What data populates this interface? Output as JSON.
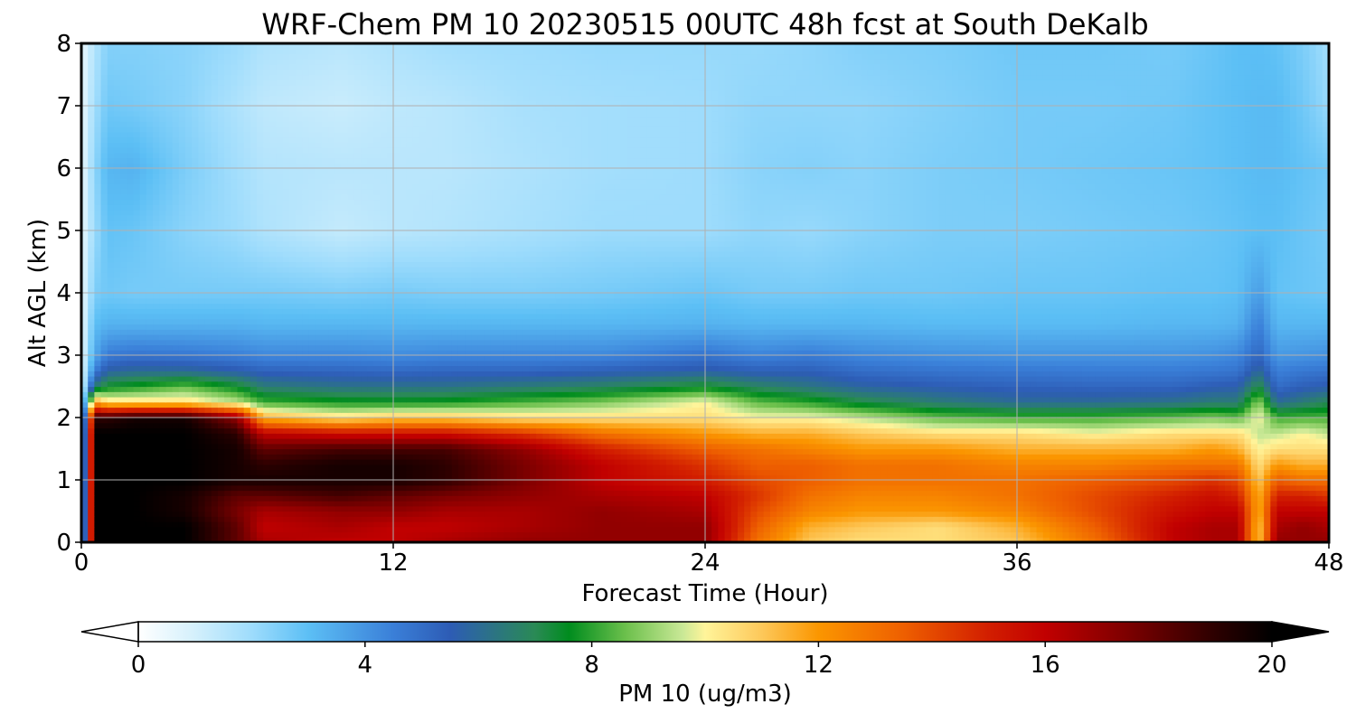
{
  "chart_data": {
    "type": "heatmap",
    "title": "WRF-Chem PM 10  20230515 00UTC 48h fcst at South DeKalb",
    "xlabel": "Forecast Time (Hour)",
    "ylabel": "Alt AGL (km)",
    "xlim": [
      0,
      48
    ],
    "ylim": [
      0,
      8
    ],
    "x_ticks": [
      "0",
      "12",
      "24",
      "36",
      "48"
    ],
    "y_ticks": [
      "0",
      "1",
      "2",
      "3",
      "4",
      "5",
      "6",
      "7",
      "8"
    ],
    "grid": true,
    "colorbar": {
      "label": "PM 10  (ug/m3)",
      "range": [
        0,
        20
      ],
      "ticks": [
        "0",
        "4",
        "8",
        "12",
        "16",
        "20"
      ],
      "extend": "both",
      "orientation": "horizontal",
      "stops": [
        {
          "v": 0,
          "c": "#ffffff"
        },
        {
          "v": 1,
          "c": "#d4f0fc"
        },
        {
          "v": 2,
          "c": "#9edcfc"
        },
        {
          "v": 3,
          "c": "#5cbff5"
        },
        {
          "v": 4.5,
          "c": "#3a7fd8"
        },
        {
          "v": 5.5,
          "c": "#2d5cb5"
        },
        {
          "v": 7,
          "c": "#2a8a55"
        },
        {
          "v": 7.6,
          "c": "#008c1e"
        },
        {
          "v": 8.6,
          "c": "#6cc04c"
        },
        {
          "v": 9.6,
          "c": "#c9e896"
        },
        {
          "v": 10,
          "c": "#fff49a"
        },
        {
          "v": 11,
          "c": "#fdc85a"
        },
        {
          "v": 12,
          "c": "#fb9600"
        },
        {
          "v": 13.5,
          "c": "#ee5f00"
        },
        {
          "v": 15,
          "c": "#d21e00"
        },
        {
          "v": 16,
          "c": "#c10000"
        },
        {
          "v": 17.5,
          "c": "#7a0000"
        },
        {
          "v": 19,
          "c": "#2c0000"
        },
        {
          "v": 20,
          "c": "#000000"
        }
      ]
    },
    "z_unit": "ug/m3",
    "x": [
      0,
      0.5,
      1,
      2,
      4,
      6,
      7,
      10,
      12,
      14,
      17,
      20,
      24,
      26,
      28,
      30,
      33,
      36,
      39,
      42,
      43.5,
      44.5,
      45.3,
      46,
      47,
      48
    ],
    "y": [
      0,
      0.25,
      0.5,
      0.75,
      1,
      1.25,
      1.5,
      1.75,
      2,
      2.25,
      2.5,
      2.75,
      3,
      3.5,
      4,
      5,
      6,
      7,
      8
    ],
    "z": [
      [
        0.5,
        20,
        20,
        20,
        20,
        18,
        16.5,
        16,
        16,
        16.5,
        17,
        17,
        17,
        13,
        11,
        10.5,
        10.5,
        11,
        13,
        16,
        16.5,
        16.5,
        11,
        17,
        17,
        17
      ],
      [
        0.5,
        20,
        20,
        20,
        20,
        18,
        16,
        16.5,
        16,
        16,
        16.5,
        17,
        17,
        13.5,
        11.5,
        11,
        10.5,
        11.5,
        13.5,
        16,
        16.5,
        16.5,
        11,
        16.5,
        17,
        16.5
      ],
      [
        0.5,
        20,
        20,
        20,
        19.5,
        17.5,
        16.5,
        17,
        17,
        16.5,
        16.5,
        17,
        16.5,
        14,
        12.5,
        12,
        12,
        12.5,
        14,
        15.5,
        16,
        16,
        11.5,
        16,
        16,
        16
      ],
      [
        0.5,
        20,
        20,
        20,
        19.5,
        18,
        18,
        18.5,
        18,
        17.5,
        17,
        16.5,
        16,
        14.5,
        13,
        12.5,
        12.5,
        13,
        14,
        15,
        15.5,
        15,
        11.5,
        15,
        15,
        14.5
      ],
      [
        0.5,
        20,
        20,
        20,
        20,
        19.5,
        19.5,
        19.5,
        19.5,
        19,
        17.5,
        16,
        15,
        14,
        13.5,
        13,
        13,
        13,
        13.5,
        14,
        14.5,
        14,
        11,
        13.5,
        13,
        13
      ],
      [
        0.5,
        20,
        20,
        20,
        20,
        19.5,
        19,
        19.5,
        19.5,
        19,
        17.5,
        16,
        14.5,
        13.5,
        13.5,
        13,
        13,
        12.5,
        12.5,
        13,
        13,
        13,
        10.5,
        12,
        11.5,
        11.5
      ],
      [
        0.5,
        20,
        20,
        20,
        20,
        19.5,
        18,
        18.5,
        18.5,
        18.5,
        17,
        15,
        13.5,
        13,
        12.5,
        12,
        12,
        11.5,
        11.5,
        11.5,
        12,
        11.5,
        10,
        10.5,
        10.5,
        10.5
      ],
      [
        0.5,
        20,
        20,
        20,
        20,
        19,
        16,
        15.5,
        15.5,
        15.5,
        14.5,
        13,
        12,
        11.5,
        11.5,
        11,
        10.5,
        10.5,
        10,
        10.5,
        10.5,
        10.5,
        9.5,
        9.5,
        10,
        9.5
      ],
      [
        0.5,
        19,
        19,
        19.5,
        19.5,
        17,
        11.5,
        10.5,
        11,
        11,
        10.5,
        10.5,
        10.5,
        10,
        10,
        9.5,
        8.5,
        8.2,
        8.2,
        8.5,
        8.8,
        8.5,
        10,
        8.2,
        8.3,
        8.3
      ],
      [
        0.5,
        12,
        10.5,
        10.5,
        10.5,
        9.5,
        8.2,
        7.8,
        7.7,
        7.8,
        8.3,
        8.8,
        10,
        8.5,
        8,
        7.2,
        6.5,
        6,
        6,
        6.2,
        6.5,
        6.5,
        9,
        6,
        6.5,
        7
      ],
      [
        0.5,
        6.5,
        7.5,
        7.8,
        8.5,
        7.5,
        6.5,
        6.2,
        6.2,
        6.2,
        6.5,
        6.8,
        7.5,
        6.8,
        6.3,
        5.8,
        5.5,
        5.3,
        5.2,
        5.2,
        5.5,
        5.6,
        7.2,
        5,
        5.4,
        5.6
      ],
      [
        0.5,
        4.5,
        5.8,
        6,
        6,
        5.6,
        5.3,
        5.2,
        5.1,
        5.2,
        5.2,
        5.4,
        5.7,
        5.4,
        5.4,
        5,
        4.8,
        4.7,
        4.6,
        4.6,
        4.7,
        4.8,
        6,
        4.5,
        4.7,
        4.8
      ],
      [
        0.5,
        3.5,
        4.6,
        4.8,
        4.7,
        4.5,
        4.3,
        4.3,
        4.2,
        4.3,
        4.3,
        4.3,
        4.8,
        4.4,
        4.6,
        4.3,
        4.1,
        4,
        4,
        4,
        4.1,
        4.3,
        5.2,
        3.9,
        4,
        4.1
      ],
      [
        0.5,
        3,
        3.3,
        3.3,
        3.3,
        3.3,
        3.2,
        3.2,
        3.2,
        3.2,
        3.2,
        3.2,
        3.3,
        3.2,
        3.2,
        3.2,
        3.1,
        3.1,
        3.1,
        3.2,
        3.2,
        3.3,
        4.5,
        3.2,
        3.2,
        3.2
      ],
      [
        0.5,
        2.5,
        2.7,
        2.6,
        2.6,
        2.6,
        2.6,
        2.5,
        2.6,
        2.5,
        2.5,
        2.6,
        2.8,
        2.6,
        2.6,
        2.7,
        2.7,
        2.8,
        2.8,
        2.9,
        2.9,
        3,
        3.8,
        2.9,
        2.8,
        2.7
      ],
      [
        0.5,
        2,
        2.9,
        2.8,
        2.3,
        2,
        1.7,
        1.3,
        1.5,
        1.6,
        1.8,
        2,
        2,
        2.2,
        2.1,
        2.3,
        2.5,
        2.5,
        2.6,
        2.7,
        2.8,
        2.9,
        3,
        3,
        2.8,
        2.6
      ],
      [
        0.5,
        2.2,
        3.2,
        3.3,
        2.5,
        1.9,
        1.6,
        1.5,
        1.5,
        1.5,
        1.7,
        1.9,
        2,
        2.3,
        2.4,
        2.3,
        2.5,
        2.6,
        2.7,
        2.8,
        2.9,
        3,
        3.1,
        3.1,
        2.9,
        2.7
      ],
      [
        0.5,
        1.9,
        2.7,
        2.6,
        2.3,
        1.7,
        1.4,
        1.2,
        1.4,
        1.5,
        1.8,
        1.9,
        2,
        2.2,
        2.2,
        2.2,
        2.4,
        2.6,
        2.6,
        2.7,
        2.9,
        3,
        3.1,
        3.1,
        2.7,
        2.1
      ],
      [
        0.5,
        1.6,
        2.4,
        2.4,
        2.3,
        2,
        1.7,
        1.5,
        1.7,
        1.9,
        2,
        2.1,
        2.1,
        2.1,
        2.2,
        2.4,
        2.5,
        2.7,
        2.7,
        2.6,
        2.8,
        3,
        3,
        2.9,
        2.5,
        1.9
      ]
    ]
  }
}
